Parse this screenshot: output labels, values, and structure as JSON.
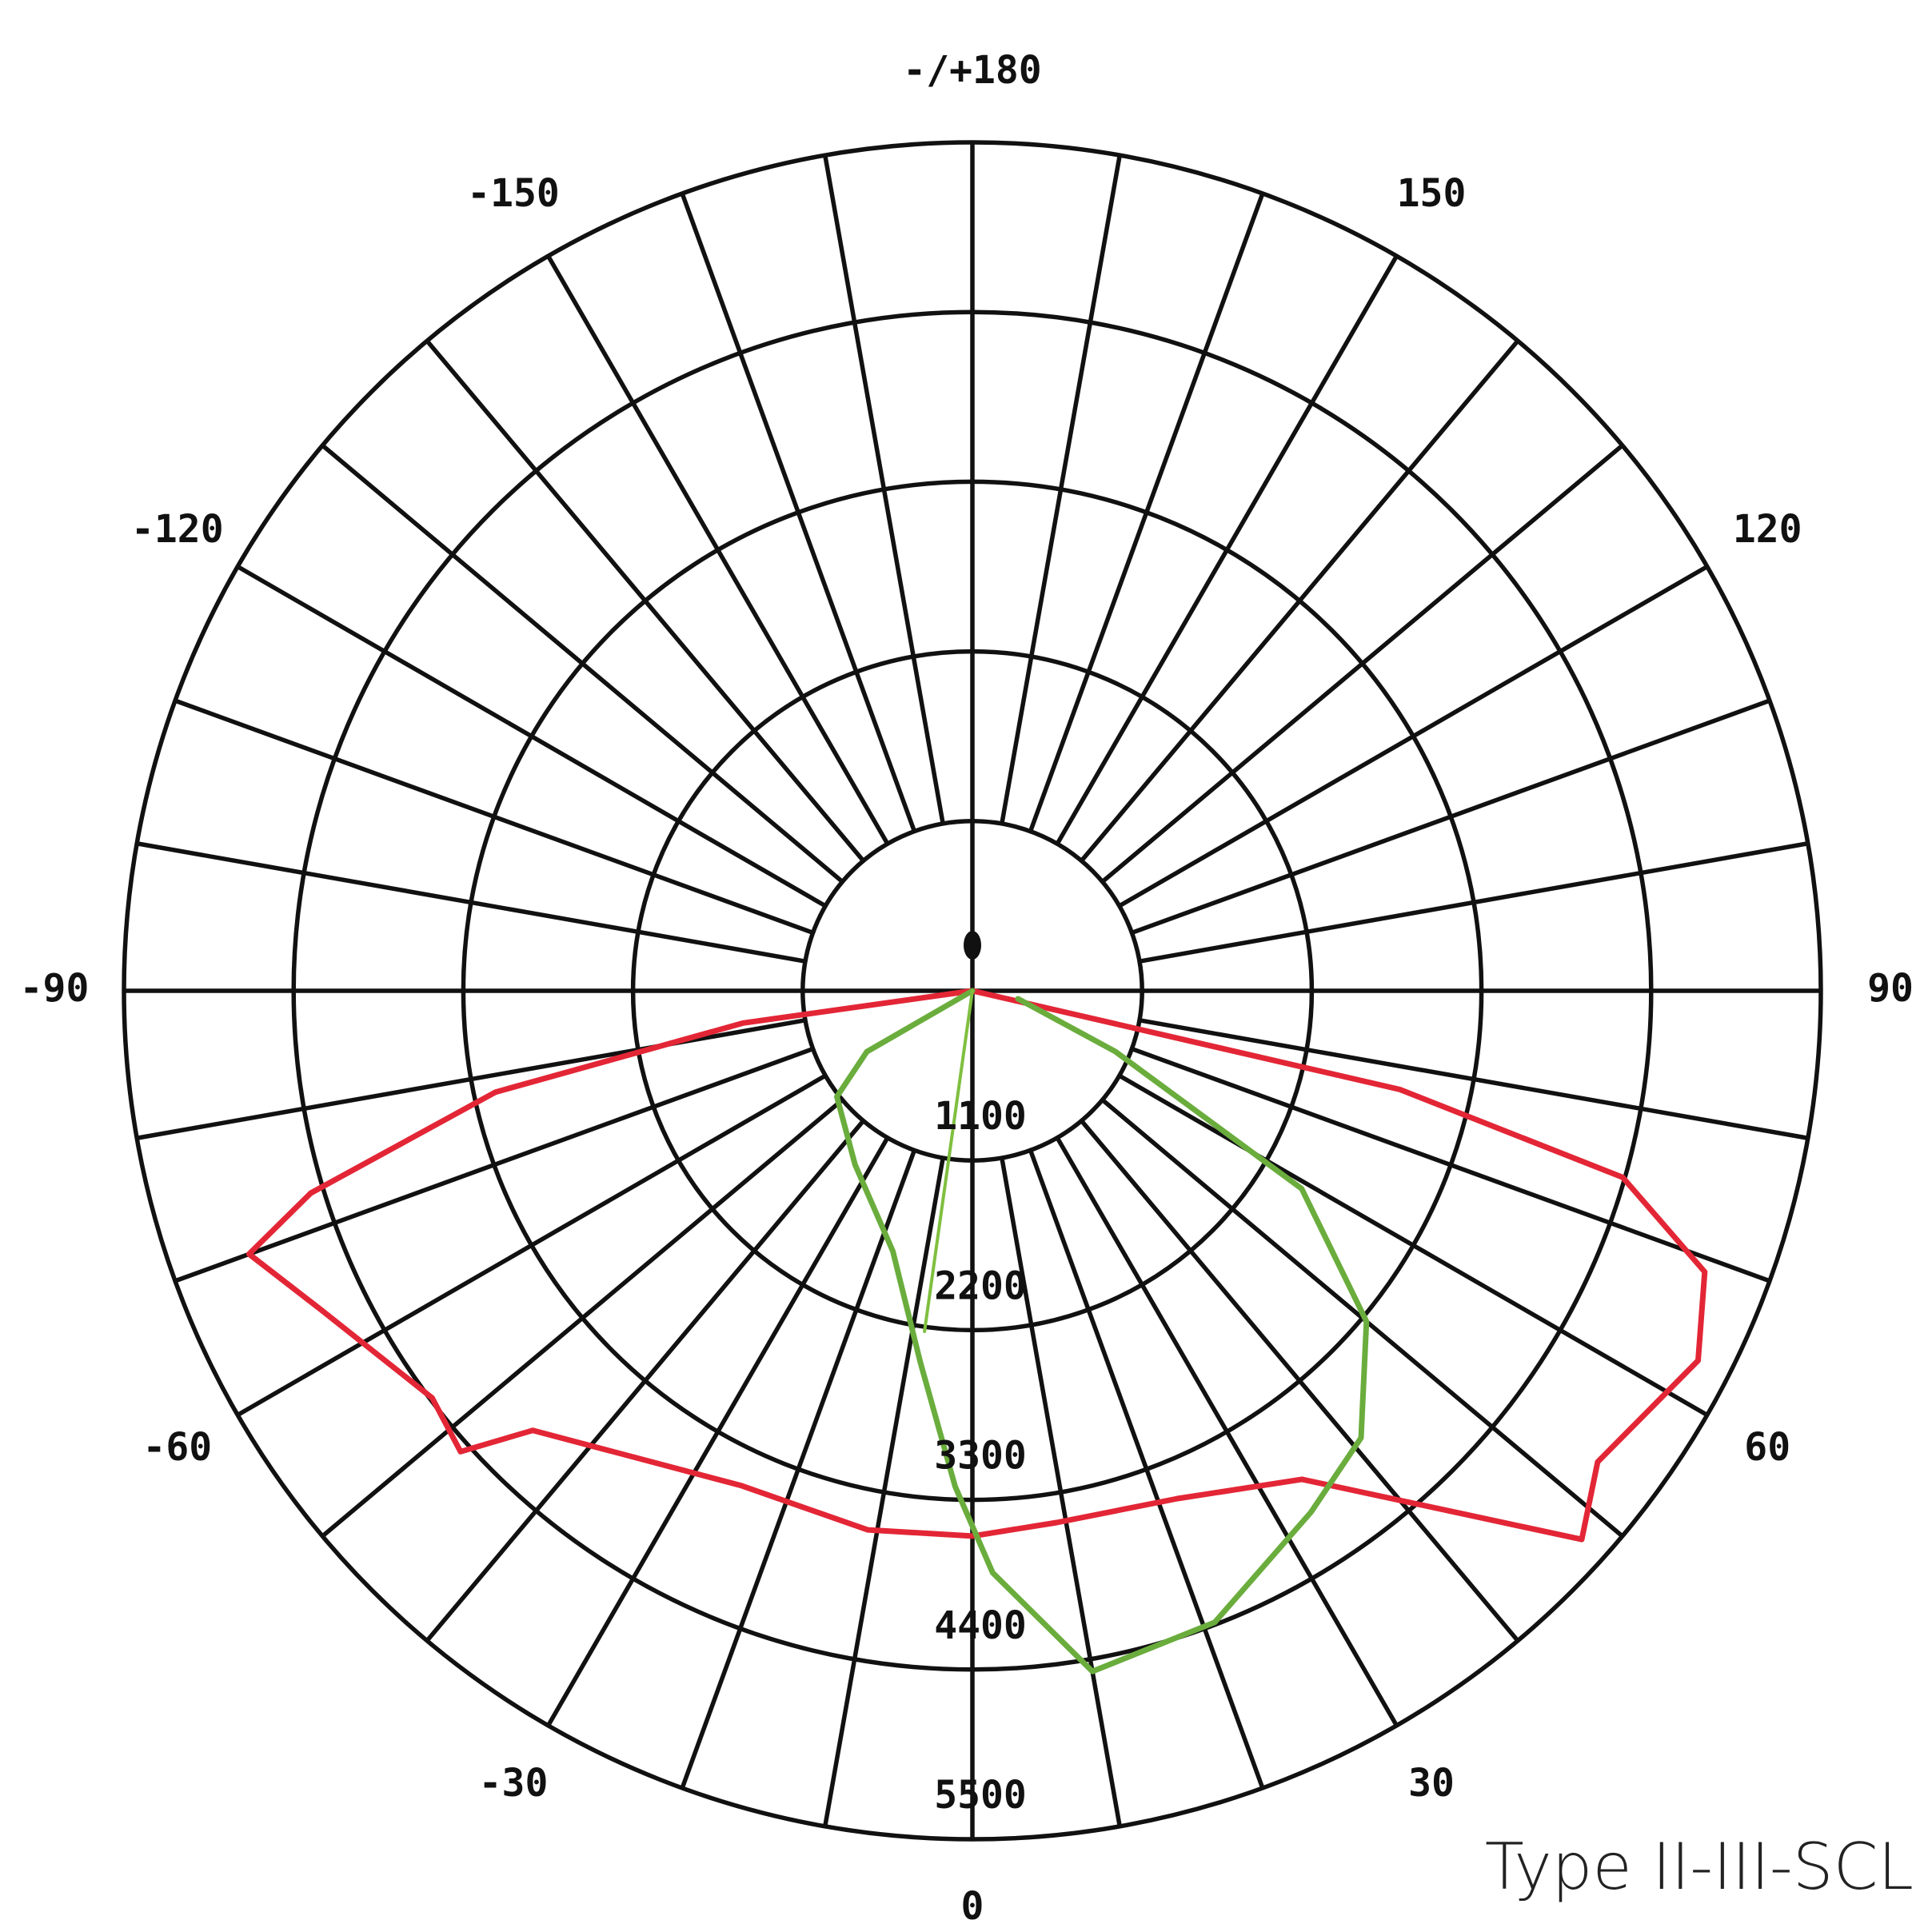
{
  "chart_data": {
    "type": "polar",
    "subtitle": "Type II-III-SCL",
    "rlim": [
      0,
      5500
    ],
    "rticks": [
      1100,
      2200,
      3300,
      4400,
      5500
    ],
    "angleticks": [
      0,
      30,
      60,
      90,
      120,
      150,
      {
        "value": 180,
        "label": "-/+180"
      },
      -150,
      -120,
      -90,
      -60,
      -30
    ],
    "grid_step": 10,
    "grid": true,
    "series": [
      {
        "color": "#e32636",
        "x": [
          -90,
          -82,
          -78,
          -73,
          -70,
          -64,
          -53,
          -48,
          -45,
          -25,
          -11,
          0,
          9,
          22,
          34,
          43,
          48,
          53,
          63,
          69,
          74,
          77,
          90
        ],
        "values": [
          0,
          1500,
          3160,
          4485,
          4990,
          4705,
          4385,
          4465,
          4030,
          3540,
          3560,
          3535,
          3490,
          3550,
          3820,
          4630,
          5315,
          5075,
          5280,
          5085,
          4385,
          2843,
          0
        ]
      },
      {
        "color": "#6aad3d",
        "x": [
          -90,
          -60,
          -52,
          -34,
          -17,
          -8,
          -2,
          2,
          10,
          21,
          33,
          41,
          50,
          59,
          67,
          80
        ],
        "values": [
          0,
          790,
          1115,
          1360,
          1765,
          2430,
          3215,
          3775,
          4480,
          4385,
          4030,
          3840,
          3335,
          2490,
          1005,
          300
        ]
      },
      {
        "color": "#7fbf3f",
        "x": [
          0,
          -8
        ],
        "values": [
          0,
          2230
        ]
      }
    ]
  }
}
